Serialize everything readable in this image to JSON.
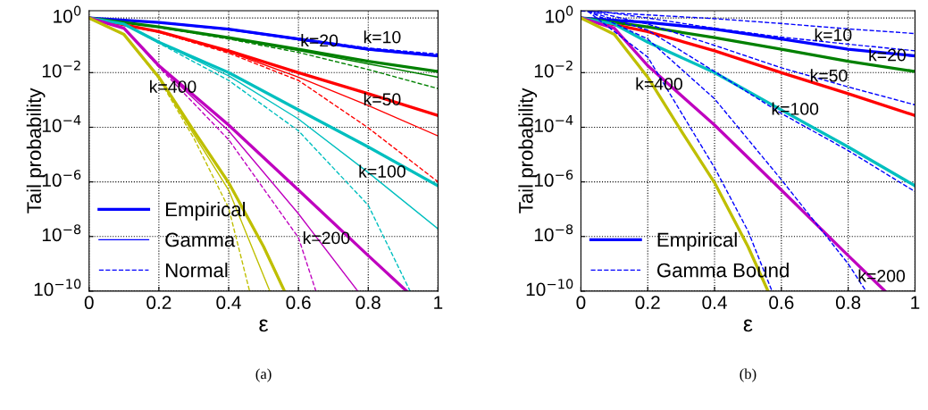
{
  "chart_data": [
    {
      "type": "line",
      "xlabel": "ε",
      "ylabel": "Tail probability",
      "log": "y",
      "grid": true,
      "legend": "bottom left",
      "line_style": "solid",
      "marker": "none",
      "xlim": [
        0,
        1
      ],
      "ylim": [
        1e-10,
        1.86
      ],
      "xticks": [
        0,
        0.2,
        0.4,
        0.6,
        0.8,
        1
      ],
      "yticks": [
        {
          "value": 1e-10,
          "label": "10$^{−10}$"
        },
        {
          "value": 1e-08,
          "label": "10$^{−8}$"
        },
        {
          "value": 1e-06,
          "label": "10$^{−6}$"
        },
        {
          "value": 0.0001,
          "label": "10$^{−4}$"
        },
        {
          "value": 0.01,
          "label": "10$^{−2}$"
        },
        {
          "value": 1,
          "label": "10$^{0}$"
        }
      ],
      "series": [
        {
          "name": "Empirical",
          "color": "#0000ff",
          "x": [
            0,
            0.2,
            0.4,
            0.6,
            0.8,
            1
          ],
          "values": [
            1,
            0.69,
            0.39,
            0.17,
            0.072,
            0.041
          ]
        },
        {
          "name": "Gamma",
          "color": "#0000ff",
          "x": [
            0,
            0.2,
            0.4,
            0.6,
            0.8,
            1
          ],
          "values": [
            1,
            0.68,
            0.37,
            0.16,
            0.068,
            0.04
          ]
        },
        {
          "name": "Normal",
          "line_style": "dashed",
          "color": "#0000ff",
          "x": [
            0,
            0.2,
            0.4,
            0.6,
            0.8,
            1
          ],
          "values": [
            1,
            0.7,
            0.4,
            0.18,
            0.08,
            0.048
          ]
        },
        {
          "color": "#008000",
          "x": [
            0,
            0.2,
            0.4,
            0.6,
            0.8,
            1
          ],
          "values": [
            1,
            0.47,
            0.19,
            0.072,
            0.026,
            0.011
          ]
        },
        {
          "color": "#008000",
          "x": [
            0,
            0.2,
            0.4,
            0.6,
            0.8,
            1
          ],
          "values": [
            1,
            0.46,
            0.18,
            0.065,
            0.021,
            0.0068
          ]
        },
        {
          "line_style": "dashed",
          "color": "#008000",
          "x": [
            0,
            0.2,
            0.4,
            0.6,
            0.8,
            1
          ],
          "values": [
            1,
            0.46,
            0.17,
            0.055,
            0.013,
            0.0026
          ]
        },
        {
          "color": "#ff0000",
          "x": [
            0,
            0.2,
            0.4,
            0.6,
            0.8,
            1
          ],
          "values": [
            1,
            0.32,
            0.063,
            0.01,
            0.0017,
            0.00027
          ]
        },
        {
          "color": "#ff0000",
          "x": [
            0,
            0.2,
            0.4,
            0.6,
            0.8,
            1
          ],
          "values": [
            1,
            0.31,
            0.058,
            0.0068,
            0.00063,
            4.8e-05
          ]
        },
        {
          "line_style": "dashed",
          "color": "#ff0000",
          "x": [
            0,
            0.2,
            0.4,
            0.6,
            0.8,
            1
          ],
          "values": [
            1,
            0.3,
            0.052,
            0.0052,
            9.5e-05,
            1e-06
          ]
        },
        {
          "color": "#00bfbf",
          "x": [
            0,
            0.1,
            0.2,
            0.4,
            0.6,
            0.8,
            1
          ],
          "values": [
            1,
            0.6,
            0.13,
            0.01,
            0.00043,
            1.9e-05,
            7.2e-07
          ]
        },
        {
          "color": "#00bfbf",
          "x": [
            0,
            0.1,
            0.2,
            0.4,
            0.6,
            0.8,
            1
          ],
          "values": [
            1,
            0.6,
            0.13,
            0.0076,
            0.0002,
            2.2e-06,
            1.9e-08
          ]
        },
        {
          "line_style": "dashed",
          "color": "#00bfbf",
          "x": [
            0,
            0.1,
            0.2,
            0.4,
            0.6,
            0.8,
            0.92
          ],
          "values": [
            1,
            0.6,
            0.12,
            0.0052,
            7.4e-05,
            1.4e-07,
            1e-10
          ]
        },
        {
          "color": "#bf00bf",
          "x": [
            0,
            0.1,
            0.2,
            0.4,
            0.6,
            0.8,
            0.91
          ],
          "values": [
            1,
            0.42,
            0.018,
            0.00012,
            5e-07,
            2e-09,
            1e-10
          ]
        },
        {
          "color": "#bf00bf",
          "x": [
            0,
            0.1,
            0.2,
            0.4,
            0.6,
            0.77
          ],
          "values": [
            1,
            0.42,
            0.017,
            7.4e-05,
            6.8e-08,
            1e-10
          ]
        },
        {
          "line_style": "dashed",
          "color": "#bf00bf",
          "x": [
            0,
            0.1,
            0.2,
            0.4,
            0.6,
            0.65
          ],
          "values": [
            1,
            0.42,
            0.016,
            3.5e-05,
            9.1e-09,
            1e-10
          ]
        },
        {
          "color": "#bfbf00",
          "x": [
            0,
            0.1,
            0.2,
            0.3,
            0.4,
            0.5,
            0.56
          ],
          "values": [
            1,
            0.25,
            0.0068,
            7.4e-05,
            9.3e-07,
            4.3e-09,
            1e-10
          ]
        },
        {
          "color": "#bfbf00",
          "x": [
            0,
            0.1,
            0.2,
            0.3,
            0.4,
            0.518
          ],
          "values": [
            1,
            0.25,
            0.0065,
            5.5e-05,
            5e-07,
            1e-10
          ]
        },
        {
          "line_style": "dashed",
          "color": "#bfbf00",
          "x": [
            0,
            0.1,
            0.2,
            0.3,
            0.4,
            0.46
          ],
          "values": [
            1,
            0.25,
            0.006,
            4e-05,
            1.1e-07,
            1e-10
          ]
        }
      ],
      "annotations": [
        {
          "text": "k=10",
          "x": 0.84,
          "y": 0.072
        },
        {
          "text": "k=20",
          "x": 0.66,
          "y": 0.054
        },
        {
          "text": "k=50",
          "x": 0.84,
          "y": 0.00038
        },
        {
          "text": "k=100",
          "x": 0.84,
          "y": 8.7e-07
        },
        {
          "text": "k=200",
          "x": 0.68,
          "y": 3.2e-09
        },
        {
          "text": "k=400",
          "x": 0.24,
          "y": 0.0011
        },
        "(a)"
      ]
    },
    {
      "type": "line",
      "xlabel": "ε",
      "ylabel": "Tail probability",
      "log": "y",
      "grid": true,
      "legend": "bottom left",
      "line_style": "solid",
      "marker": "none",
      "xlim": [
        0,
        1
      ],
      "ylim": [
        1e-10,
        1.86
      ],
      "xticks": [
        0,
        0.2,
        0.4,
        0.6,
        0.8,
        1
      ],
      "yticks": [
        {
          "value": 1e-10,
          "label": "10$^{−10}$"
        },
        {
          "value": 1e-08,
          "label": "10$^{−8}$"
        },
        {
          "value": 1e-06,
          "label": "10$^{−6}$"
        },
        {
          "value": 0.0001,
          "label": "10$^{−4}$"
        },
        {
          "value": 0.01,
          "label": "10$^{−2}$"
        },
        {
          "value": 1,
          "label": "10$^{0}$"
        }
      ],
      "series": [
        {
          "name": "Empirical",
          "color": "#0000ff",
          "x": [
            0,
            0.2,
            0.4,
            0.6,
            0.8,
            1
          ],
          "values": [
            1,
            0.69,
            0.39,
            0.17,
            0.072,
            0.041
          ]
        },
        {
          "name": "Gamma Bound",
          "line_style": "dashed",
          "color": "#0000ff",
          "x": [
            0,
            0.2,
            0.4,
            0.6,
            0.8,
            1
          ],
          "values": [
            1.8,
            1.3,
            0.95,
            0.63,
            0.4,
            0.27
          ]
        },
        {
          "color": "#008000",
          "x": [
            0,
            0.2,
            0.4,
            0.6,
            0.8,
            1
          ],
          "values": [
            1,
            0.47,
            0.19,
            0.072,
            0.026,
            0.011
          ]
        },
        {
          "line_style": "dashed",
          "color": "#0000ff",
          "x": [
            0.05,
            0.2,
            0.4,
            0.6,
            0.8,
            1
          ],
          "values": [
            1.8,
            1.0,
            0.42,
            0.2,
            0.11,
            0.063
          ]
        },
        {
          "color": "#ff0000",
          "x": [
            0,
            0.2,
            0.4,
            0.6,
            0.8,
            1
          ],
          "values": [
            1,
            0.32,
            0.063,
            0.01,
            0.0017,
            0.00027
          ]
        },
        {
          "line_style": "dashed",
          "color": "#0000ff",
          "x": [
            0.03,
            0.2,
            0.4,
            0.6,
            0.8,
            1
          ],
          "values": [
            1.8,
            0.6,
            0.1,
            0.015,
            0.003,
            0.00066
          ]
        },
        {
          "color": "#00bfbf",
          "x": [
            0,
            0.1,
            0.2,
            0.4,
            0.6,
            0.8,
            1
          ],
          "values": [
            1,
            0.6,
            0.13,
            0.01,
            0.00043,
            1.9e-05,
            7.2e-07
          ]
        },
        {
          "line_style": "dashed",
          "color": "#0000ff",
          "x": [
            0.02,
            0.2,
            0.4,
            0.6,
            0.8,
            1
          ],
          "values": [
            1.8,
            0.36,
            0.011,
            0.00032,
            1.4e-05,
            4.4e-07
          ]
        },
        {
          "color": "#bf00bf",
          "x": [
            0,
            0.1,
            0.2,
            0.4,
            0.6,
            0.8,
            0.91
          ],
          "values": [
            1,
            0.42,
            0.018,
            0.00012,
            5e-07,
            2e-09,
            1e-10
          ]
        },
        {
          "line_style": "dashed",
          "color": "#0000ff",
          "x": [
            0.02,
            0.2,
            0.4,
            0.6,
            0.8,
            0.853
          ],
          "values": [
            1.8,
            0.17,
            0.0011,
            1.2e-06,
            1e-09,
            1e-10
          ]
        },
        {
          "color": "#bfbf00",
          "x": [
            0,
            0.1,
            0.2,
            0.3,
            0.4,
            0.5,
            0.56
          ],
          "values": [
            1,
            0.25,
            0.0068,
            7.4e-05,
            9.3e-07,
            4.3e-09,
            1e-10
          ]
        },
        {
          "line_style": "dashed",
          "color": "#0000ff",
          "x": [
            0.02,
            0.2,
            0.4,
            0.5,
            0.572
          ],
          "values": [
            1.8,
            0.037,
            3.3e-06,
            1.6e-08,
            1e-10
          ]
        }
      ],
      "annotations": [
        {
          "text": "k=10",
          "x": 0.755,
          "y": 0.087
        },
        {
          "text": "k=20",
          "x": 0.917,
          "y": 0.016
        },
        {
          "text": "k=50",
          "x": 0.742,
          "y": 0.0028
        },
        {
          "text": "k=100",
          "x": 0.641,
          "y": 0.00017
        },
        {
          "text": "k=200",
          "x": 0.9,
          "y": 1.3e-10
        },
        {
          "text": "k=400",
          "x": 0.234,
          "y": 0.0014
        },
        "(b)"
      ]
    }
  ]
}
